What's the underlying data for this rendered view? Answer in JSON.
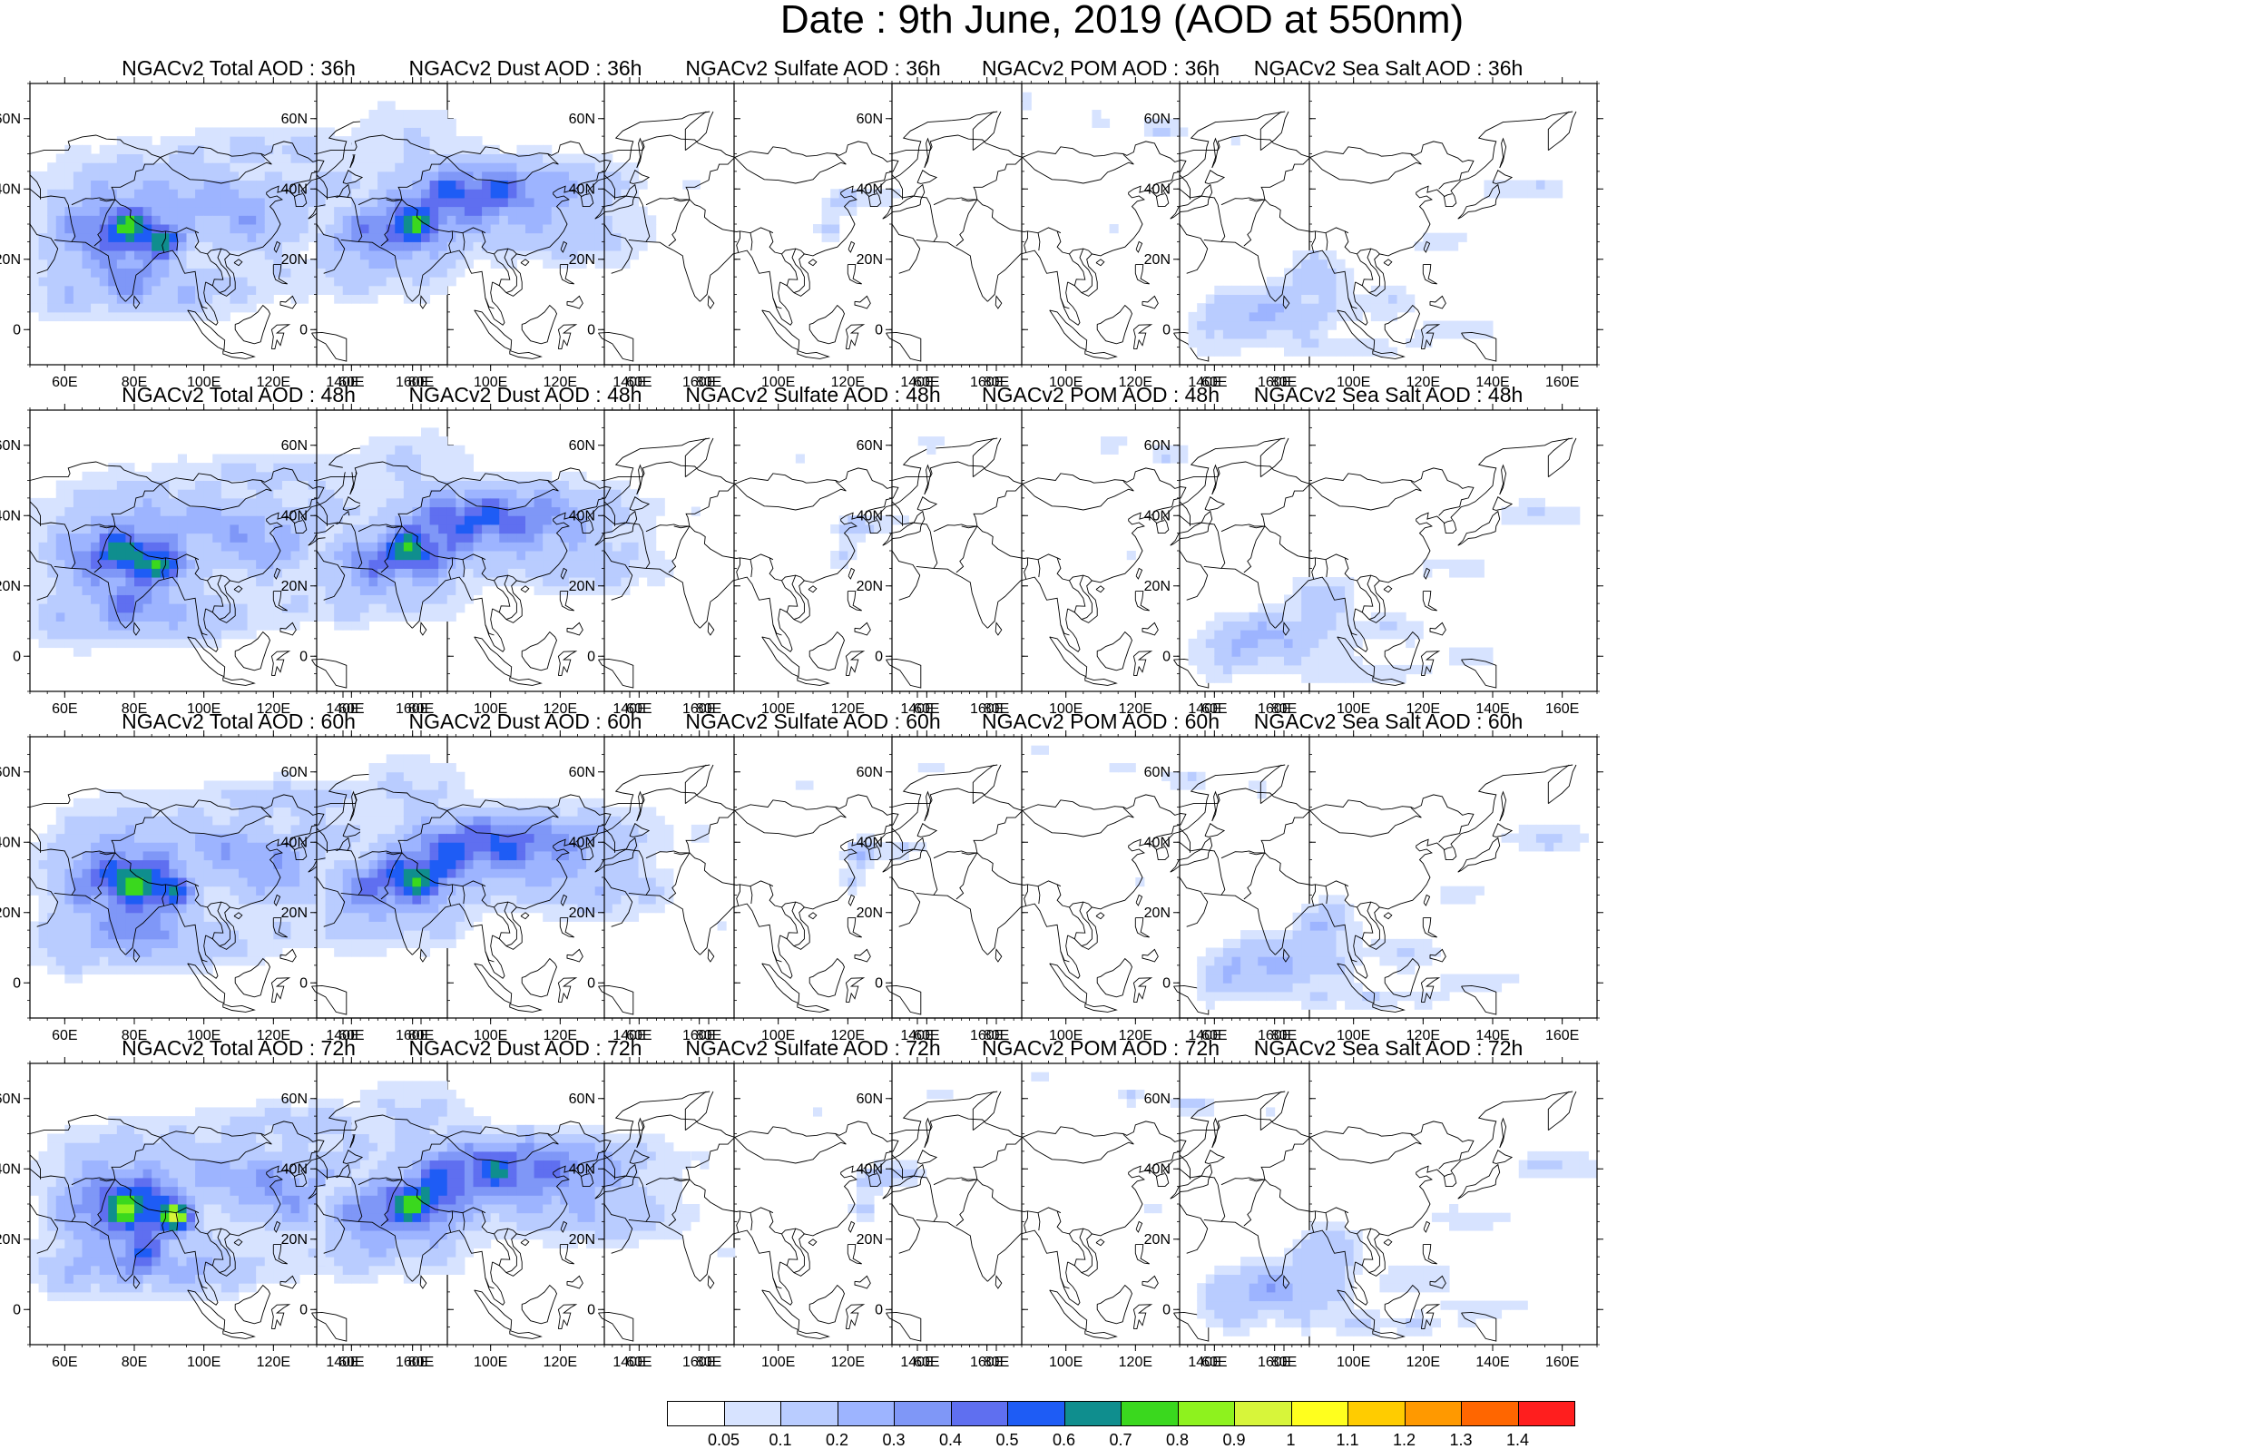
{
  "title": "Date : 9th June, 2019 (AOD at 550nm)",
  "map": {
    "lon_range": [
      50,
      170
    ],
    "lat_range": [
      -10,
      70
    ],
    "lon_ticks": [
      "60E",
      "80E",
      "100E",
      "120E",
      "140E",
      "160E"
    ],
    "lat_ticks": [
      "60N",
      "40N",
      "20N",
      "0"
    ]
  },
  "panels": [
    {
      "title": "NGACv2 Total AOD : 36h",
      "species": "total",
      "hour": 36
    },
    {
      "title": "NGACv2 Dust AOD : 36h",
      "species": "dust",
      "hour": 36
    },
    {
      "title": "NGACv2 Sulfate AOD : 36h",
      "species": "sulfate",
      "hour": 36
    },
    {
      "title": "NGACv2 POM AOD : 36h",
      "species": "pom",
      "hour": 36
    },
    {
      "title": "NGACv2 Sea Salt AOD : 36h",
      "species": "seasalt",
      "hour": 36
    },
    {
      "title": "NGACv2 Total AOD : 48h",
      "species": "total",
      "hour": 48
    },
    {
      "title": "NGACv2 Dust AOD : 48h",
      "species": "dust",
      "hour": 48
    },
    {
      "title": "NGACv2 Sulfate AOD : 48h",
      "species": "sulfate",
      "hour": 48
    },
    {
      "title": "NGACv2 POM AOD : 48h",
      "species": "pom",
      "hour": 48
    },
    {
      "title": "NGACv2 Sea Salt AOD : 48h",
      "species": "seasalt",
      "hour": 48
    },
    {
      "title": "NGACv2 Total AOD : 60h",
      "species": "total",
      "hour": 60
    },
    {
      "title": "NGACv2 Dust AOD : 60h",
      "species": "dust",
      "hour": 60
    },
    {
      "title": "NGACv2 Sulfate AOD : 60h",
      "species": "sulfate",
      "hour": 60
    },
    {
      "title": "NGACv2 POM AOD : 60h",
      "species": "pom",
      "hour": 60
    },
    {
      "title": "NGACv2 Sea Salt AOD : 60h",
      "species": "seasalt",
      "hour": 60
    },
    {
      "title": "NGACv2 Total AOD : 72h",
      "species": "total",
      "hour": 72
    },
    {
      "title": "NGACv2 Dust AOD : 72h",
      "species": "dust",
      "hour": 72
    },
    {
      "title": "NGACv2 Sulfate AOD : 72h",
      "species": "sulfate",
      "hour": 72
    },
    {
      "title": "NGACv2 POM AOD : 72h",
      "species": "pom",
      "hour": 72
    },
    {
      "title": "NGACv2 Sea Salt  AOD : 72h",
      "species": "seasalt",
      "hour": 72
    }
  ],
  "colorbar": {
    "labels": [
      "0.05",
      "0.1",
      "0.2",
      "0.3",
      "0.4",
      "0.5",
      "0.6",
      "0.7",
      "0.8",
      "0.9",
      "1",
      "1.1",
      "1.2",
      "1.3",
      "1.4"
    ],
    "colors": [
      "#ffffff",
      "#d7e3ff",
      "#b9ccff",
      "#9db4ff",
      "#7f97f7",
      "#5f6ff0",
      "#1e5cf5",
      "#0f8e8e",
      "#3ad81e",
      "#8ef21e",
      "#d7f53a",
      "#ffff1e",
      "#ffcc00",
      "#ff9900",
      "#ff6600",
      "#ff1e1e"
    ]
  }
}
